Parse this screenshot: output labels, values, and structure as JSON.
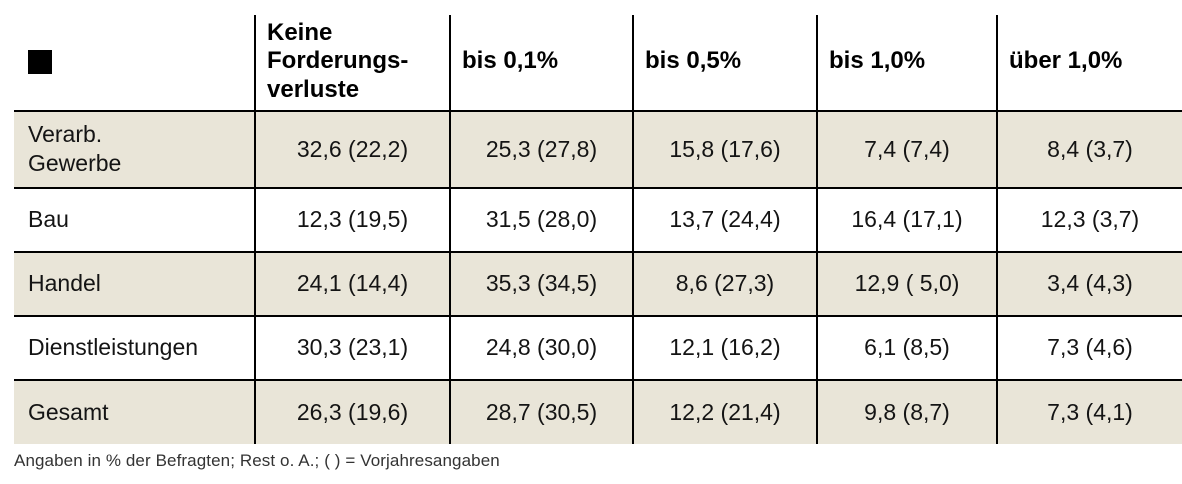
{
  "chart_data": {
    "type": "table",
    "title": "",
    "legend_square_icon": "filled-black-square",
    "columns": [
      "",
      "Keine\nForderungs-\nverluste",
      "bis 0,1%",
      "bis 0,5%",
      "bis 1,0%",
      "über 1,0%"
    ],
    "rows": [
      {
        "label": "Verarb.\nGewerbe",
        "values": [
          "32,6 (22,2)",
          "25,3 (27,8)",
          "15,8 (17,6)",
          "7,4 (7,4)",
          "8,4 (3,7)"
        ]
      },
      {
        "label": "Bau",
        "values": [
          "12,3 (19,5)",
          "31,5 (28,0)",
          "13,7 (24,4)",
          "16,4 (17,1)",
          "12,3 (3,7)"
        ]
      },
      {
        "label": "Handel",
        "values": [
          "24,1 (14,4)",
          "35,3 (34,5)",
          "8,6 (27,3)",
          "12,9 ( 5,0)",
          "3,4 (4,3)"
        ]
      },
      {
        "label": "Dienstleistungen",
        "values": [
          "30,3 (23,1)",
          "24,8 (30,0)",
          "12,1 (16,2)",
          "6,1 (8,5)",
          "7,3 (4,6)"
        ]
      },
      {
        "label": "Gesamt",
        "values": [
          "26,3 (19,6)",
          "28,7 (30,5)",
          "12,2 (21,4)",
          "9,8 (8,7)",
          "7,3 (4,1)"
        ]
      }
    ],
    "shaded_row_indices": [
      0,
      2,
      4
    ],
    "units_note": "values are percent of respondents; parentheses are prior-year figures"
  },
  "footnote": "Angaben in % der Befragten; Rest o. A.; ( ) = Vorjahresangaben",
  "colors": {
    "row_shade": "#e9e5d8",
    "grid_line": "#000000",
    "text": "#1a1a1a",
    "legend_square": "#000000"
  }
}
